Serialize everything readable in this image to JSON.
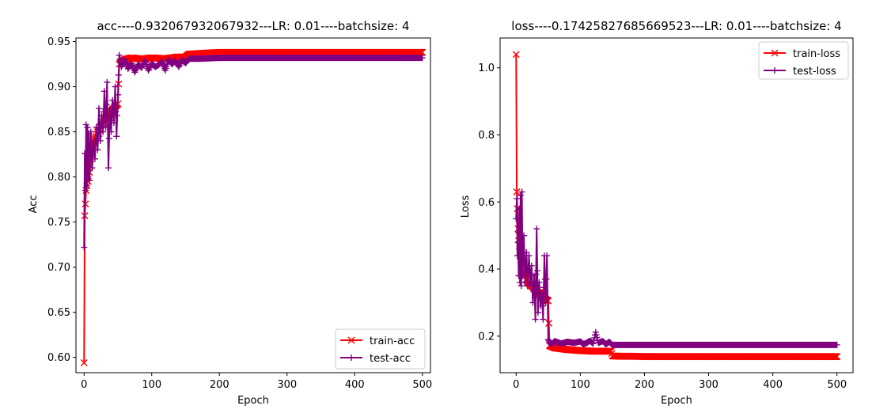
{
  "colors": {
    "train": "#ff0000",
    "test": "#800080",
    "axis": "#000000",
    "background": "#ffffff"
  },
  "chart_data": [
    {
      "type": "line",
      "title": "acc----0.932067932067932---LR: 0.01----batchsize: 4",
      "xlabel": "Epoch",
      "ylabel": "Acc",
      "xlim": [
        -12,
        512
      ],
      "ylim": [
        0.583,
        0.954
      ],
      "xticks": [
        0,
        100,
        200,
        300,
        400,
        500
      ],
      "yticks": [
        0.6,
        0.65,
        0.7,
        0.75,
        0.8,
        0.85,
        0.9,
        0.95
      ],
      "ytick_labels": [
        "0.60",
        "0.65",
        "0.70",
        "0.75",
        "0.80",
        "0.85",
        "0.90",
        "0.95"
      ],
      "grid": false,
      "legend_position": "lower-right",
      "series": [
        {
          "name": "train-acc",
          "marker": "x",
          "points": [
            [
              0,
              0.594
            ],
            [
              1,
              0.757
            ],
            [
              2,
              0.77
            ],
            [
              3,
              0.785
            ],
            [
              4,
              0.79
            ],
            [
              5,
              0.8
            ],
            [
              6,
              0.795
            ],
            [
              7,
              0.81
            ],
            [
              8,
              0.805
            ],
            [
              10,
              0.82
            ],
            [
              12,
              0.83
            ],
            [
              14,
              0.838
            ],
            [
              16,
              0.842
            ],
            [
              18,
              0.845
            ],
            [
              20,
              0.85
            ],
            [
              22,
              0.848
            ],
            [
              25,
              0.86
            ],
            [
              28,
              0.858
            ],
            [
              30,
              0.863
            ],
            [
              33,
              0.868
            ],
            [
              36,
              0.866
            ],
            [
              40,
              0.872
            ],
            [
              43,
              0.875
            ],
            [
              46,
              0.878
            ],
            [
              50,
              0.881
            ],
            [
              52,
              0.925
            ],
            [
              60,
              0.93
            ],
            [
              70,
              0.932
            ],
            [
              80,
              0.931
            ],
            [
              90,
              0.931
            ],
            [
              100,
              0.932
            ],
            [
              120,
              0.931
            ],
            [
              140,
              0.933
            ],
            [
              150,
              0.933
            ],
            [
              155,
              0.936
            ],
            [
              175,
              0.937
            ],
            [
              200,
              0.938
            ],
            [
              250,
              0.938
            ],
            [
              300,
              0.938
            ],
            [
              350,
              0.938
            ],
            [
              400,
              0.938
            ],
            [
              450,
              0.938
            ],
            [
              500,
              0.938
            ]
          ]
        },
        {
          "name": "test-acc",
          "marker": "+",
          "points": [
            [
              0,
              0.722
            ],
            [
              1,
              0.826
            ],
            [
              2,
              0.785
            ],
            [
              3,
              0.858
            ],
            [
              4,
              0.79
            ],
            [
              5,
              0.855
            ],
            [
              6,
              0.8
            ],
            [
              7,
              0.848
            ],
            [
              8,
              0.796
            ],
            [
              10,
              0.85
            ],
            [
              12,
              0.81
            ],
            [
              14,
              0.84
            ],
            [
              16,
              0.82
            ],
            [
              18,
              0.855
            ],
            [
              20,
              0.83
            ],
            [
              22,
              0.876
            ],
            [
              24,
              0.84
            ],
            [
              26,
              0.868
            ],
            [
              28,
              0.85
            ],
            [
              30,
              0.895
            ],
            [
              32,
              0.855
            ],
            [
              34,
              0.905
            ],
            [
              36,
              0.81
            ],
            [
              38,
              0.875
            ],
            [
              40,
              0.85
            ],
            [
              42,
              0.885
            ],
            [
              44,
              0.86
            ],
            [
              46,
              0.9
            ],
            [
              48,
              0.845
            ],
            [
              50,
              0.891
            ],
            [
              52,
              0.935
            ],
            [
              55,
              0.922
            ],
            [
              60,
              0.93
            ],
            [
              65,
              0.92
            ],
            [
              70,
              0.926
            ],
            [
              75,
              0.916
            ],
            [
              80,
              0.925
            ],
            [
              85,
              0.921
            ],
            [
              90,
              0.929
            ],
            [
              95,
              0.918
            ],
            [
              100,
              0.926
            ],
            [
              105,
              0.922
            ],
            [
              110,
              0.924
            ],
            [
              115,
              0.928
            ],
            [
              120,
              0.918
            ],
            [
              125,
              0.93
            ],
            [
              130,
              0.925
            ],
            [
              135,
              0.929
            ],
            [
              140,
              0.922
            ],
            [
              145,
              0.93
            ],
            [
              150,
              0.926
            ],
            [
              155,
              0.931
            ],
            [
              170,
              0.931
            ],
            [
              200,
              0.932
            ],
            [
              250,
              0.932
            ],
            [
              300,
              0.932
            ],
            [
              350,
              0.932
            ],
            [
              400,
              0.932
            ],
            [
              450,
              0.932
            ],
            [
              500,
              0.932
            ]
          ]
        }
      ]
    },
    {
      "type": "line",
      "title": "loss----0.17425827685669523---LR: 0.01----batchsize: 4",
      "xlabel": "Epoch",
      "ylabel": "Loss",
      "xlim": [
        -25,
        525
      ],
      "ylim": [
        0.091,
        1.089
      ],
      "xticks": [
        0,
        100,
        200,
        300,
        400,
        500
      ],
      "yticks": [
        0.2,
        0.4,
        0.6,
        0.8,
        1.0
      ],
      "ytick_labels": [
        "0.2",
        "0.4",
        "0.6",
        "0.8",
        "1.0"
      ],
      "grid": false,
      "legend_position": "upper-right",
      "series": [
        {
          "name": "train-loss",
          "marker": "x",
          "points": [
            [
              0,
              1.04
            ],
            [
              1,
              0.63
            ],
            [
              2,
              0.58
            ],
            [
              3,
              0.52
            ],
            [
              4,
              0.5
            ],
            [
              5,
              0.47
            ],
            [
              6,
              0.44
            ],
            [
              7,
              0.46
            ],
            [
              8,
              0.42
            ],
            [
              10,
              0.4
            ],
            [
              12,
              0.38
            ],
            [
              14,
              0.39
            ],
            [
              16,
              0.37
            ],
            [
              18,
              0.36
            ],
            [
              20,
              0.36
            ],
            [
              22,
              0.35
            ],
            [
              25,
              0.35
            ],
            [
              28,
              0.34
            ],
            [
              30,
              0.34
            ],
            [
              33,
              0.33
            ],
            [
              36,
              0.33
            ],
            [
              40,
              0.32
            ],
            [
              43,
              0.32
            ],
            [
              46,
              0.31
            ],
            [
              50,
              0.305
            ],
            [
              52,
              0.172
            ],
            [
              60,
              0.165
            ],
            [
              80,
              0.16
            ],
            [
              100,
              0.157
            ],
            [
              120,
              0.155
            ],
            [
              140,
              0.155
            ],
            [
              148,
              0.155
            ],
            [
              150,
              0.141
            ],
            [
              160,
              0.14
            ],
            [
              180,
              0.14
            ],
            [
              200,
              0.139
            ],
            [
              250,
              0.139
            ],
            [
              300,
              0.139
            ],
            [
              350,
              0.139
            ],
            [
              400,
              0.139
            ],
            [
              450,
              0.139
            ],
            [
              500,
              0.139
            ]
          ]
        },
        {
          "name": "test-loss",
          "marker": "+",
          "points": [
            [
              0,
              0.55
            ],
            [
              1,
              0.61
            ],
            [
              2,
              0.44
            ],
            [
              3,
              0.48
            ],
            [
              4,
              0.38
            ],
            [
              5,
              0.58
            ],
            [
              6,
              0.36
            ],
            [
              7,
              0.62
            ],
            [
              8,
              0.35
            ],
            [
              9,
              0.63
            ],
            [
              10,
              0.38
            ],
            [
              12,
              0.5
            ],
            [
              14,
              0.36
            ],
            [
              16,
              0.45
            ],
            [
              18,
              0.35
            ],
            [
              20,
              0.44
            ],
            [
              22,
              0.36
            ],
            [
              24,
              0.41
            ],
            [
              26,
              0.3
            ],
            [
              28,
              0.38
            ],
            [
              30,
              0.25
            ],
            [
              32,
              0.52
            ],
            [
              34,
              0.27
            ],
            [
              36,
              0.36
            ],
            [
              38,
              0.29
            ],
            [
              40,
              0.33
            ],
            [
              42,
              0.25
            ],
            [
              44,
              0.44
            ],
            [
              46,
              0.3
            ],
            [
              48,
              0.44
            ],
            [
              50,
              0.19
            ],
            [
              52,
              0.182
            ],
            [
              55,
              0.175
            ],
            [
              60,
              0.185
            ],
            [
              70,
              0.178
            ],
            [
              80,
              0.183
            ],
            [
              90,
              0.18
            ],
            [
              100,
              0.184
            ],
            [
              105,
              0.176
            ],
            [
              110,
              0.18
            ],
            [
              115,
              0.186
            ],
            [
              120,
              0.178
            ],
            [
              124,
              0.212
            ],
            [
              128,
              0.18
            ],
            [
              135,
              0.185
            ],
            [
              140,
              0.176
            ],
            [
              145,
              0.183
            ],
            [
              150,
              0.174
            ],
            [
              170,
              0.174
            ],
            [
              200,
              0.174
            ],
            [
              250,
              0.174
            ],
            [
              300,
              0.174
            ],
            [
              350,
              0.174
            ],
            [
              400,
              0.174
            ],
            [
              450,
              0.174
            ],
            [
              500,
              0.174
            ]
          ]
        }
      ]
    }
  ]
}
